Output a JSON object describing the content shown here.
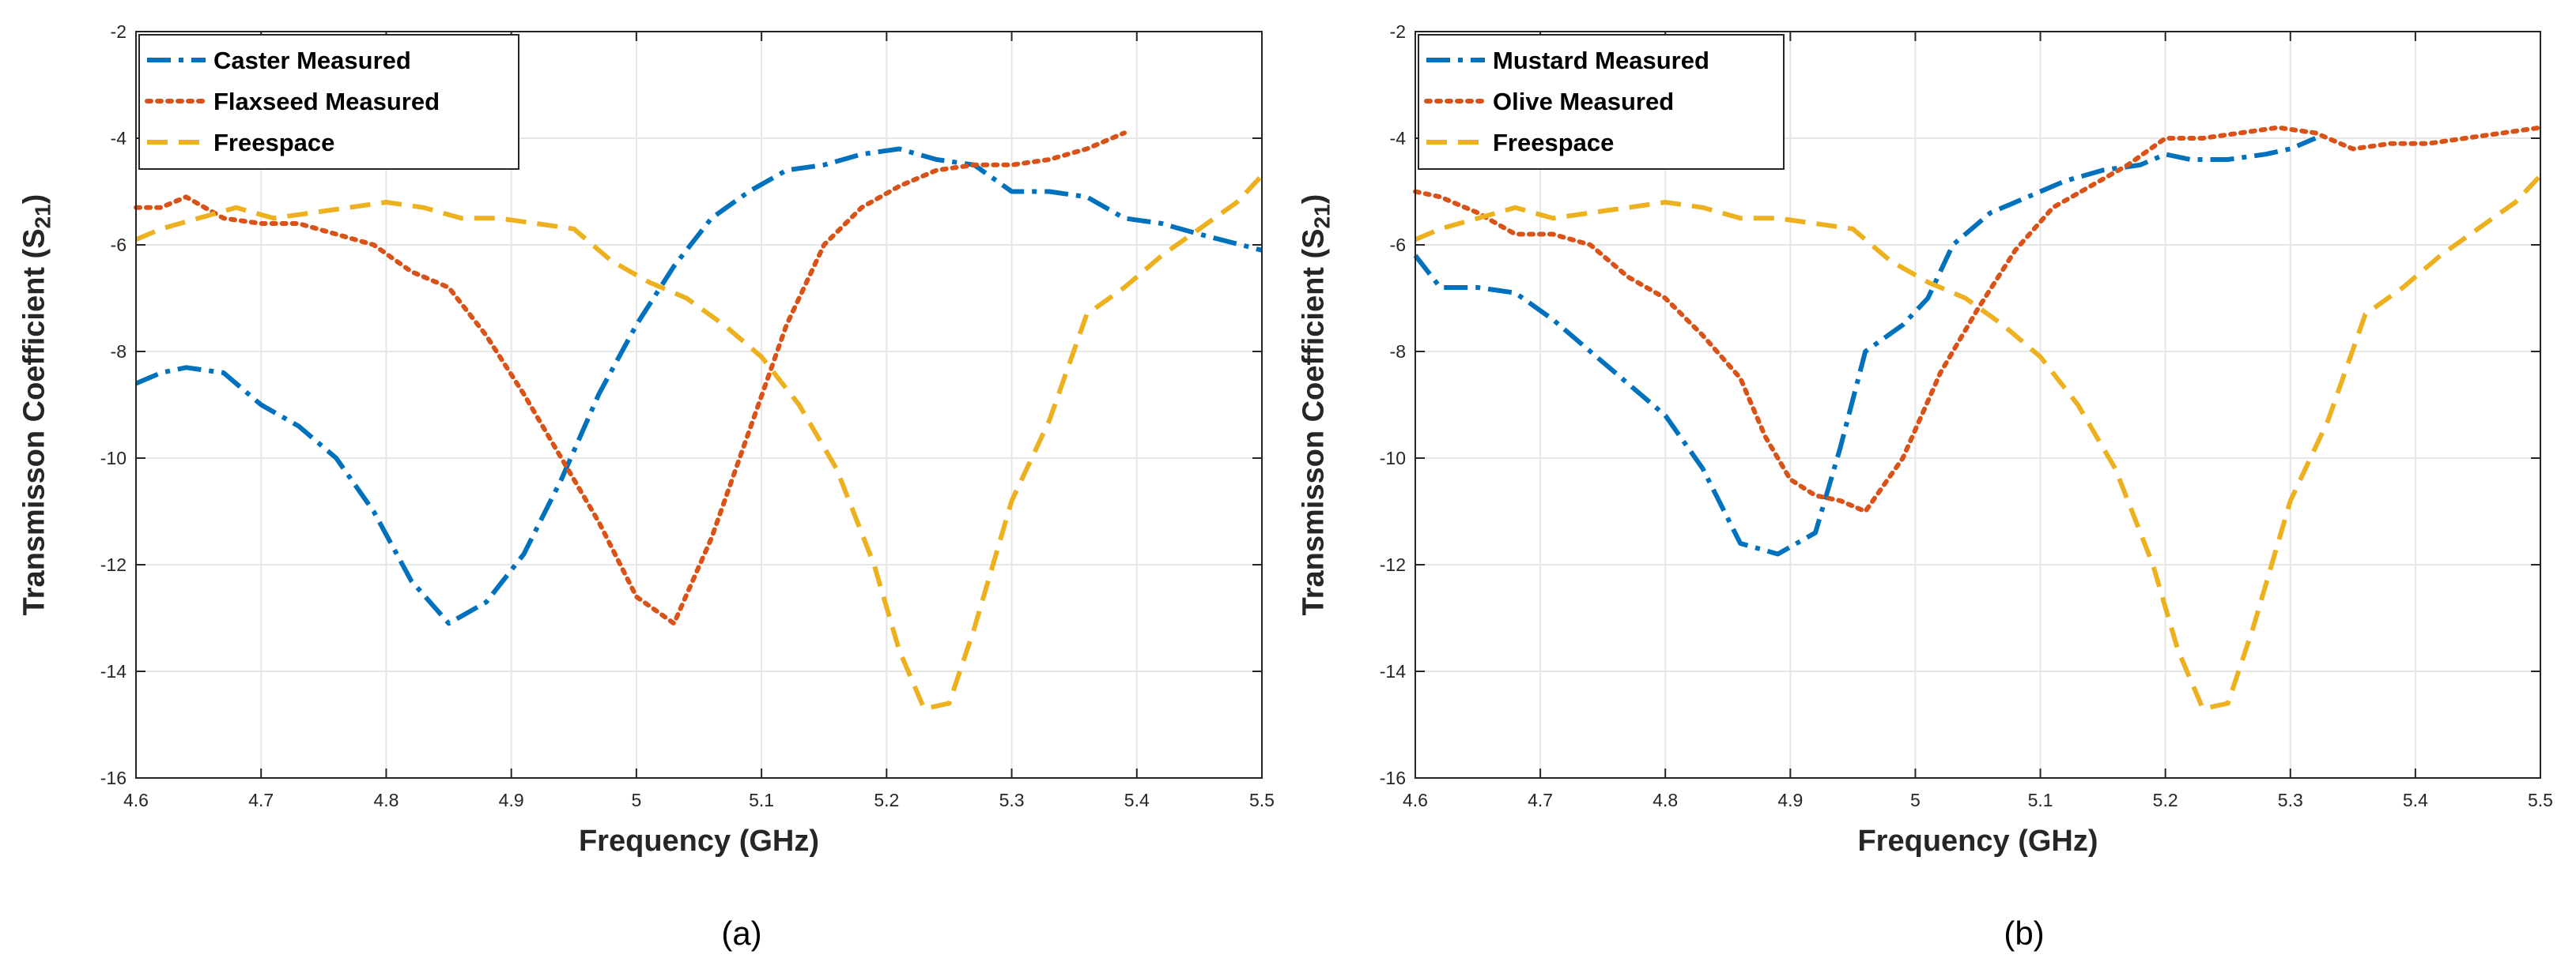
{
  "chart_data": [
    {
      "type": "line",
      "caption": "(a)",
      "xlabel": "Frequency (GHz)",
      "ylabel_main": "Transmisson Coefficient (S",
      "ylabel_sub": "21",
      "ylabel_end": ")",
      "xlim": [
        4.6,
        5.5
      ],
      "ylim": [
        -16,
        -2
      ],
      "xticks": [
        "4.6",
        "4.7",
        "4.8",
        "4.9",
        "5",
        "5.1",
        "5.2",
        "5.3",
        "5.4",
        "5.5"
      ],
      "yticks": [
        "-16",
        "-14",
        "-12",
        "-10",
        "-8",
        "-6",
        "-4",
        "-2"
      ],
      "grid": true,
      "legend_position": "top-left",
      "series": [
        {
          "name": "Caster Measured",
          "color": "#0072BD",
          "style": "dashdot",
          "x": [
            4.6,
            4.62,
            4.64,
            4.67,
            4.7,
            4.73,
            4.76,
            4.79,
            4.82,
            4.85,
            4.88,
            4.91,
            4.94,
            4.97,
            5.0,
            5.03,
            5.06,
            5.09,
            5.12,
            5.15,
            5.18,
            5.21,
            5.24,
            5.27,
            5.3,
            5.33,
            5.36,
            5.39,
            5.42,
            5.45,
            5.5
          ],
          "y": [
            -8.6,
            -8.4,
            -8.3,
            -8.4,
            -9.0,
            -9.4,
            -10.0,
            -11.0,
            -12.3,
            -13.1,
            -12.7,
            -11.8,
            -10.4,
            -8.8,
            -7.5,
            -6.4,
            -5.5,
            -5.0,
            -4.6,
            -4.5,
            -4.3,
            -4.2,
            -4.4,
            -4.5,
            -5.0,
            -5.0,
            -5.1,
            -5.5,
            -5.6,
            -5.8,
            -6.1
          ]
        },
        {
          "name": "Flaxseed Measured",
          "color": "#D95319",
          "style": "dotted",
          "x": [
            4.6,
            4.62,
            4.64,
            4.67,
            4.7,
            4.73,
            4.76,
            4.79,
            4.82,
            4.85,
            4.88,
            4.91,
            4.94,
            4.97,
            5.0,
            5.03,
            5.06,
            5.09,
            5.12,
            5.15,
            5.18,
            5.21,
            5.24,
            5.27,
            5.3,
            5.33,
            5.36,
            5.39
          ],
          "y": [
            -5.3,
            -5.3,
            -5.1,
            -5.5,
            -5.6,
            -5.6,
            -5.8,
            -6.0,
            -6.5,
            -6.8,
            -7.7,
            -8.8,
            -10.0,
            -11.2,
            -12.6,
            -13.1,
            -11.5,
            -9.5,
            -7.5,
            -6.0,
            -5.3,
            -4.9,
            -4.6,
            -4.5,
            -4.5,
            -4.4,
            -4.2,
            -3.9
          ]
        },
        {
          "name": "Freespace",
          "color": "#EDB120",
          "style": "dashed",
          "x": [
            4.6,
            4.62,
            4.65,
            4.68,
            4.71,
            4.74,
            4.77,
            4.8,
            4.83,
            4.86,
            4.89,
            4.92,
            4.95,
            4.98,
            5.01,
            5.04,
            5.07,
            5.1,
            5.13,
            5.16,
            5.19,
            5.21,
            5.23,
            5.25,
            5.27,
            5.3,
            5.33,
            5.36,
            5.39,
            5.42,
            5.45,
            5.48,
            5.5
          ],
          "y": [
            -5.9,
            -5.7,
            -5.5,
            -5.3,
            -5.5,
            -5.4,
            -5.3,
            -5.2,
            -5.3,
            -5.5,
            -5.5,
            -5.6,
            -5.7,
            -6.3,
            -6.7,
            -7.0,
            -7.5,
            -8.1,
            -9.0,
            -10.2,
            -12.0,
            -13.6,
            -14.7,
            -14.6,
            -13.2,
            -10.8,
            -9.3,
            -7.3,
            -6.8,
            -6.2,
            -5.7,
            -5.2,
            -4.7
          ]
        }
      ]
    },
    {
      "type": "line",
      "caption": "(b)",
      "xlabel": "Frequency (GHz)",
      "ylabel_main": "Transmisson Coefficient (S",
      "ylabel_sub": "21",
      "ylabel_end": ")",
      "xlim": [
        4.6,
        5.5
      ],
      "ylim": [
        -16,
        -2
      ],
      "xticks": [
        "4.6",
        "4.7",
        "4.8",
        "4.9",
        "5",
        "5.1",
        "5.2",
        "5.3",
        "5.4",
        "5.5"
      ],
      "yticks": [
        "-16",
        "-14",
        "-12",
        "-10",
        "-8",
        "-6",
        "-4",
        "-2"
      ],
      "grid": true,
      "legend_position": "top-left",
      "series": [
        {
          "name": "Mustard Measured",
          "color": "#0072BD",
          "style": "dashdot",
          "x": [
            4.6,
            4.62,
            4.65,
            4.68,
            4.71,
            4.74,
            4.77,
            4.8,
            4.83,
            4.86,
            4.89,
            4.92,
            4.94,
            4.96,
            4.99,
            5.01,
            5.03,
            5.06,
            5.09,
            5.12,
            5.15,
            5.18,
            5.2,
            5.22,
            5.25,
            5.28,
            5.3,
            5.32
          ],
          "y": [
            -6.2,
            -6.8,
            -6.8,
            -6.9,
            -7.4,
            -8.0,
            -8.6,
            -9.2,
            -10.2,
            -11.6,
            -11.8,
            -11.4,
            -9.8,
            -8.0,
            -7.5,
            -7.0,
            -6.0,
            -5.4,
            -5.1,
            -4.8,
            -4.6,
            -4.5,
            -4.3,
            -4.4,
            -4.4,
            -4.3,
            -4.2,
            -4.0
          ]
        },
        {
          "name": "Olive Measured",
          "color": "#D95319",
          "style": "dotted",
          "x": [
            4.6,
            4.62,
            4.65,
            4.68,
            4.71,
            4.74,
            4.77,
            4.8,
            4.83,
            4.86,
            4.88,
            4.9,
            4.92,
            4.94,
            4.96,
            4.99,
            5.02,
            5.05,
            5.08,
            5.11,
            5.14,
            5.17,
            5.2,
            5.23,
            5.26,
            5.29,
            5.32,
            5.35,
            5.38,
            5.41,
            5.44,
            5.47,
            5.5
          ],
          "y": [
            -5.0,
            -5.1,
            -5.4,
            -5.8,
            -5.8,
            -6.0,
            -6.6,
            -7.0,
            -7.7,
            -8.5,
            -9.6,
            -10.4,
            -10.7,
            -10.8,
            -11.0,
            -10.0,
            -8.4,
            -7.2,
            -6.1,
            -5.3,
            -4.9,
            -4.5,
            -4.0,
            -4.0,
            -3.9,
            -3.8,
            -3.9,
            -4.2,
            -4.1,
            -4.1,
            -4.0,
            -3.9,
            -3.8
          ]
        },
        {
          "name": "Freespace",
          "color": "#EDB120",
          "style": "dashed",
          "x": [
            4.6,
            4.62,
            4.65,
            4.68,
            4.71,
            4.74,
            4.77,
            4.8,
            4.83,
            4.86,
            4.89,
            4.92,
            4.95,
            4.98,
            5.01,
            5.04,
            5.07,
            5.1,
            5.13,
            5.16,
            5.19,
            5.21,
            5.23,
            5.25,
            5.27,
            5.3,
            5.33,
            5.36,
            5.39,
            5.42,
            5.45,
            5.48,
            5.5
          ],
          "y": [
            -5.9,
            -5.7,
            -5.5,
            -5.3,
            -5.5,
            -5.4,
            -5.3,
            -5.2,
            -5.3,
            -5.5,
            -5.5,
            -5.6,
            -5.7,
            -6.3,
            -6.7,
            -7.0,
            -7.5,
            -8.1,
            -9.0,
            -10.2,
            -12.0,
            -13.6,
            -14.7,
            -14.6,
            -13.2,
            -10.8,
            -9.3,
            -7.3,
            -6.8,
            -6.2,
            -5.7,
            -5.2,
            -4.7
          ]
        }
      ]
    }
  ]
}
